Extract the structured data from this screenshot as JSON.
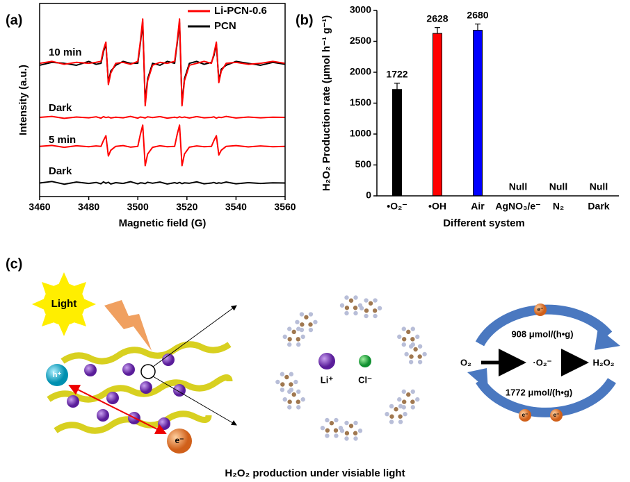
{
  "chart_data": [
    {
      "type": "line",
      "label": "(a)",
      "xlabel": "Magnetic field (G)",
      "ylabel": "Intensity (a.u.)",
      "xlim": [
        3460,
        3560
      ],
      "xticks": [
        3460,
        3480,
        3500,
        3520,
        3540,
        3560
      ],
      "ylim": [
        0,
        100
      ],
      "annotations": [
        "10 min",
        "Dark",
        "5 min",
        "Dark"
      ],
      "x": [
        3460,
        3465,
        3470,
        3475,
        3480,
        3483,
        3485,
        3486,
        3487,
        3488,
        3489,
        3491,
        3494,
        3497,
        3500,
        3501,
        3502,
        3503,
        3504,
        3506,
        3509,
        3512,
        3515,
        3516,
        3517,
        3518,
        3519,
        3521,
        3524,
        3527,
        3530,
        3531,
        3532,
        3533,
        3534,
        3536,
        3540,
        3545,
        3550,
        3555,
        3560
      ],
      "series": [
        {
          "name": "Li-PCN-0.6",
          "color": "#ff0000",
          "values": [
            69,
            70,
            68.5,
            69.5,
            69,
            69.5,
            70,
            76,
            80,
            58,
            64,
            69,
            69.5,
            68.5,
            70,
            80,
            92,
            47,
            60,
            68,
            69.5,
            69,
            70,
            80,
            92,
            47,
            60,
            68,
            69,
            70,
            69,
            74,
            80,
            59,
            65,
            69,
            69.5,
            68.5,
            69,
            70,
            69
          ]
        },
        {
          "name": "PCN",
          "color": "#000000",
          "values": [
            68,
            69.5,
            69,
            68,
            70,
            68.5,
            69,
            75,
            79,
            59,
            65,
            68,
            70,
            69,
            69,
            79,
            90,
            49,
            61,
            69,
            68,
            70,
            69,
            79,
            90,
            48,
            61,
            69,
            70,
            68.5,
            69.5,
            73,
            79,
            60,
            66,
            68,
            70,
            69,
            68,
            69.5,
            68.5
          ]
        },
        {
          "color": "#ff0000",
          "values": [
            41,
            41.5,
            40.5,
            41.2,
            40.8,
            41.3,
            40.6,
            41.4,
            40.9,
            41.2,
            40.7,
            41.1,
            40.8,
            41.5,
            40.6,
            41.2,
            41,
            40.7,
            41.3,
            40.9,
            41.4,
            40.6,
            41.1,
            40.8,
            41.3,
            40.9,
            41.2,
            40.7,
            41.4,
            40.8,
            41,
            41.3,
            40.6,
            41.1,
            40.9,
            41.5,
            40.7,
            41.2,
            40.8,
            41.1,
            41
          ]
        },
        {
          "color": "#ff0000",
          "values": [
            26,
            26.5,
            25.5,
            26.3,
            25.8,
            26.2,
            26,
            29,
            31.5,
            21,
            24,
            26,
            26.4,
            25.6,
            26,
            32,
            37,
            16,
            22,
            25.5,
            26.3,
            25.8,
            26,
            32,
            37,
            16,
            22,
            25.6,
            26.2,
            25.8,
            26,
            29,
            31.5,
            21.5,
            24,
            26,
            26.4,
            25.7,
            26.2,
            25.8,
            26
          ]
        },
        {
          "color": "#000000",
          "values": [
            7,
            7.8,
            6.4,
            7.5,
            6.8,
            7.3,
            6.6,
            7.6,
            6.9,
            7.4,
            6.5,
            7.2,
            6.8,
            7.7,
            6.6,
            7.1,
            7,
            6.7,
            7.4,
            6.9,
            7.5,
            6.5,
            7.2,
            6.8,
            7.3,
            6.7,
            7.1,
            6.9,
            7.6,
            6.6,
            7,
            7.3,
            6.8,
            7.1,
            6.9,
            7.5,
            6.6,
            7.2,
            6.8,
            7.1,
            7
          ]
        }
      ]
    },
    {
      "type": "bar",
      "label": "(b)",
      "xlabel": "Different system",
      "ylabel": "H₂O₂ Production rate (μmol h⁻¹ g⁻¹)",
      "categories": [
        "•O₂⁻",
        "•OH",
        "Air",
        "AgNO₃/e⁻",
        "N₂",
        "Dark"
      ],
      "values": [
        1722,
        2628,
        2680,
        null,
        null,
        null
      ],
      "value_labels": [
        "1722",
        "2628",
        "2680",
        "Null",
        "Null",
        "Null"
      ],
      "errors": [
        100,
        95,
        100,
        null,
        null,
        null
      ],
      "colors": [
        "#000000",
        "#ff0000",
        "#0000ff",
        null,
        null,
        null
      ],
      "ylim": [
        0,
        3000
      ],
      "yticks": [
        0,
        500,
        1000,
        1500,
        2000,
        2500,
        3000
      ]
    }
  ],
  "diagram": {
    "label": "(c)",
    "light": "Light",
    "hole": "h⁺",
    "electron": "e⁻",
    "ions": [
      "Li⁺",
      "Cl⁻"
    ],
    "rates": [
      "908 μmol/(h•g)",
      "1772 μmol/(h•g)"
    ],
    "species": [
      "O₂",
      "·O₂⁻",
      "H₂O₂"
    ],
    "cycle_electrons": [
      "e⁻",
      "e⁻",
      "e⁻"
    ],
    "caption": "H₂O₂ production under visiable light"
  }
}
